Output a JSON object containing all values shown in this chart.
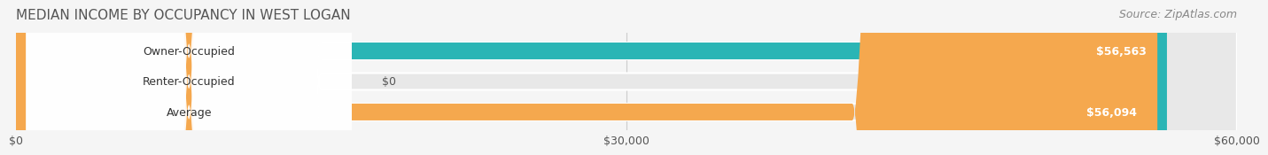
{
  "title": "MEDIAN INCOME BY OCCUPANCY IN WEST LOGAN",
  "source": "Source: ZipAtlas.com",
  "categories": [
    "Owner-Occupied",
    "Renter-Occupied",
    "Average"
  ],
  "values": [
    56563,
    0,
    56094
  ],
  "bar_colors": [
    "#2ab5b5",
    "#b8a0c8",
    "#f5a84e"
  ],
  "bar_labels": [
    "$56,563",
    "$0",
    "$56,094"
  ],
  "xlim": [
    0,
    60000
  ],
  "xticks": [
    0,
    30000,
    60000
  ],
  "xtick_labels": [
    "$0",
    "$30,000",
    "$60,000"
  ],
  "bg_color": "#f5f5f5",
  "bar_bg_color": "#e8e8e8",
  "title_fontsize": 11,
  "source_fontsize": 9,
  "label_fontsize": 9,
  "tick_fontsize": 9
}
